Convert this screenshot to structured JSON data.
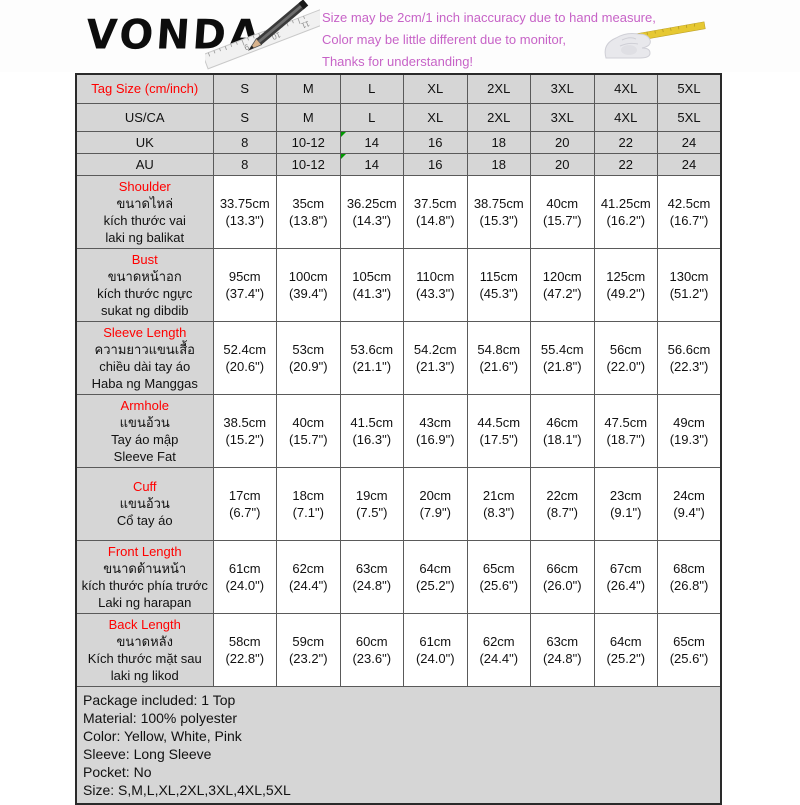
{
  "colors": {
    "note": "#c763c7",
    "red": "#ff0000",
    "header_gray": "#d6d6d6",
    "corner_mark_green": "#009900",
    "tape_yellow": "#e6c832"
  },
  "header": {
    "brand": "VONDA",
    "notes": [
      "Size may be 2cm/1 inch inaccuracy due to hand measure,",
      "Color may be little different due to monitor,",
      "Thanks for understanding!"
    ],
    "images": {
      "pencil": "pencil-and-ruler-sketch",
      "hand": "hand-with-tape-measure"
    }
  },
  "size_table": {
    "columns": [
      "S",
      "M",
      "L",
      "XL",
      "2XL",
      "3XL",
      "4XL",
      "5XL"
    ],
    "header_rows": [
      {
        "label": "Tag Size (cm/inch)",
        "label_red": true,
        "values": [
          "S",
          "M",
          "L",
          "XL",
          "2XL",
          "3XL",
          "4XL",
          "5XL"
        ]
      },
      {
        "label": "US/CA",
        "label_red": false,
        "values": [
          "S",
          "M",
          "L",
          "XL",
          "2XL",
          "3XL",
          "4XL",
          "5XL"
        ]
      },
      {
        "label": "UK",
        "label_red": false,
        "corner_marks": [
          2
        ],
        "values": [
          "8",
          "10-12",
          "14",
          "16",
          "18",
          "20",
          "22",
          "24"
        ]
      },
      {
        "label": "AU",
        "label_red": false,
        "corner_marks": [
          2
        ],
        "values": [
          "8",
          "10-12",
          "14",
          "16",
          "18",
          "20",
          "22",
          "24"
        ]
      }
    ],
    "measure_rows": [
      {
        "title": "Shoulder",
        "translations": [
          "ขนาดไหล่",
          "kích thước vai",
          "laki ng balikat"
        ],
        "cm": [
          "33.75cm",
          "35cm",
          "36.25cm",
          "37.5cm",
          "38.75cm",
          "40cm",
          "41.25cm",
          "42.5cm"
        ],
        "inch": [
          "(13.3\")",
          "(13.8\")",
          "(14.3\")",
          "(14.8\")",
          "(15.3\")",
          "(15.7\")",
          "(16.2\")",
          "(16.7\")"
        ]
      },
      {
        "title": "Bust",
        "translations": [
          "ขนาดหน้าอก",
          "kích thước ngực",
          "sukat ng dibdib"
        ],
        "cm": [
          "95cm",
          "100cm",
          "105cm",
          "110cm",
          "115cm",
          "120cm",
          "125cm",
          "130cm"
        ],
        "inch": [
          "(37.4\")",
          "(39.4\")",
          "(41.3\")",
          "(43.3\")",
          "(45.3\")",
          "(47.2\")",
          "(49.2\")",
          "(51.2\")"
        ]
      },
      {
        "title": "Sleeve Length",
        "translations": [
          "ความยาวแขนเสื้อ",
          "chiều dài tay áo",
          "Haba ng Manggas"
        ],
        "cm": [
          "52.4cm",
          "53cm",
          "53.6cm",
          "54.2cm",
          "54.8cm",
          "55.4cm",
          "56cm",
          "56.6cm"
        ],
        "inch": [
          "(20.6\")",
          "(20.9\")",
          "(21.1\")",
          "(21.3\")",
          "(21.6\")",
          "(21.8\")",
          "(22.0\")",
          "(22.3\")"
        ]
      },
      {
        "title": "Armhole",
        "translations": [
          "แขนอ้วน",
          "Tay áo mập",
          "Sleeve Fat"
        ],
        "cm": [
          "38.5cm",
          "40cm",
          "41.5cm",
          "43cm",
          "44.5cm",
          "46cm",
          "47.5cm",
          "49cm"
        ],
        "inch": [
          "(15.2\")",
          "(15.7\")",
          "(16.3\")",
          "(16.9\")",
          "(17.5\")",
          "(18.1\")",
          "(18.7\")",
          "(19.3\")"
        ]
      },
      {
        "title": "Cuff",
        "translations": [
          "แขนอ้วน",
          "Cổ tay áo"
        ],
        "cm": [
          "17cm",
          "18cm",
          "19cm",
          "20cm",
          "21cm",
          "22cm",
          "23cm",
          "24cm"
        ],
        "inch": [
          "(6.7\")",
          "(7.1\")",
          "(7.5\")",
          "(7.9\")",
          "(8.3\")",
          "(8.7\")",
          "(9.1\")",
          "(9.4\")"
        ]
      },
      {
        "title": "Front Length",
        "translations": [
          "ขนาดด้านหน้า",
          "kích thước phía trước",
          "Laki ng harapan"
        ],
        "cm": [
          "61cm",
          "62cm",
          "63cm",
          "64cm",
          "65cm",
          "66cm",
          "67cm",
          "68cm"
        ],
        "inch": [
          "(24.0\")",
          "(24.4\")",
          "(24.8\")",
          "(25.2\")",
          "(25.6\")",
          "(26.0\")",
          "(26.4\")",
          "(26.8\")"
        ]
      },
      {
        "title": "Back Length",
        "translations": [
          "ขนาดหลัง",
          "Kích thước mặt sau",
          "laki ng likod"
        ],
        "cm": [
          "58cm",
          "59cm",
          "60cm",
          "61cm",
          "62cm",
          "63cm",
          "64cm",
          "65cm"
        ],
        "inch": [
          "(22.8\")",
          "(23.2\")",
          "(23.6\")",
          "(24.0\")",
          "(24.4\")",
          "(24.8\")",
          "(25.2\")",
          "(25.6\")"
        ]
      }
    ]
  },
  "footer": {
    "lines": [
      "Package included: 1 Top",
      "Material: 100% polyester",
      "Color: Yellow, White, Pink",
      "Sleeve: Long Sleeve",
      "Pocket: No",
      "Size: S,M,L,XL,2XL,3XL,4XL,5XL"
    ]
  }
}
